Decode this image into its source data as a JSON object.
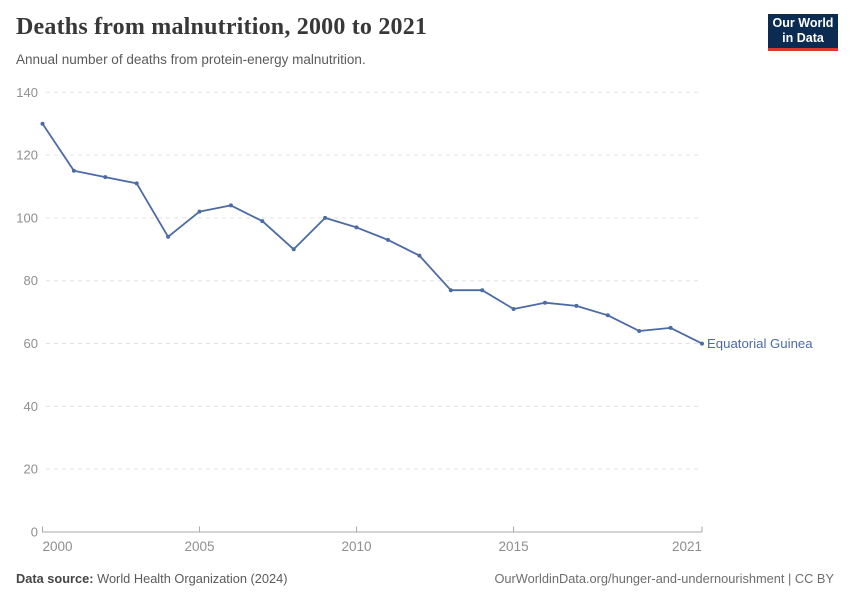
{
  "header": {
    "title": "Deaths from malnutrition, 2000 to 2021",
    "subtitle": "Annual number of deaths from protein-energy malnutrition.",
    "logo_line1": "Our World",
    "logo_line2": "in Data"
  },
  "chart_data": {
    "type": "line",
    "title": "Deaths from malnutrition, 2000 to 2021",
    "subtitle": "Annual number of deaths from protein-energy malnutrition.",
    "x": [
      2000,
      2001,
      2002,
      2003,
      2004,
      2005,
      2006,
      2007,
      2008,
      2009,
      2010,
      2011,
      2012,
      2013,
      2014,
      2015,
      2016,
      2017,
      2018,
      2019,
      2020,
      2021
    ],
    "series": [
      {
        "name": "Equatorial Guinea",
        "values": [
          130,
          115,
          113,
          111,
          94,
          102,
          104,
          99,
          90,
          100,
          97,
          93,
          88,
          77,
          77,
          71,
          73,
          72,
          69,
          64,
          65,
          60
        ]
      }
    ],
    "xlabel": "",
    "ylabel": "",
    "ylim": [
      0,
      140
    ],
    "yticks": [
      0,
      20,
      40,
      60,
      80,
      100,
      120,
      140
    ],
    "xticks": [
      2000,
      2005,
      2010,
      2015,
      2021
    ],
    "grid": "horizontal-dashed",
    "legend": "series name labelled at end of line",
    "end_label": "Equatorial Guinea"
  },
  "footer": {
    "source_label": "Data source:",
    "source_text": "World Health Organization (2024)",
    "attribution": "OurWorldinData.org/hunger-and-undernourishment | CC BY"
  },
  "colors": {
    "series_blue": "#4c6ba5",
    "title_text": "#383838",
    "subtitle_text": "#5b5b5b",
    "axis_text": "#8f8f8f",
    "gridline": "#e2e2e2",
    "axis_line": "#a8a8a8",
    "logo_bg": "#0c2b52",
    "logo_underline": "#e0362d"
  }
}
